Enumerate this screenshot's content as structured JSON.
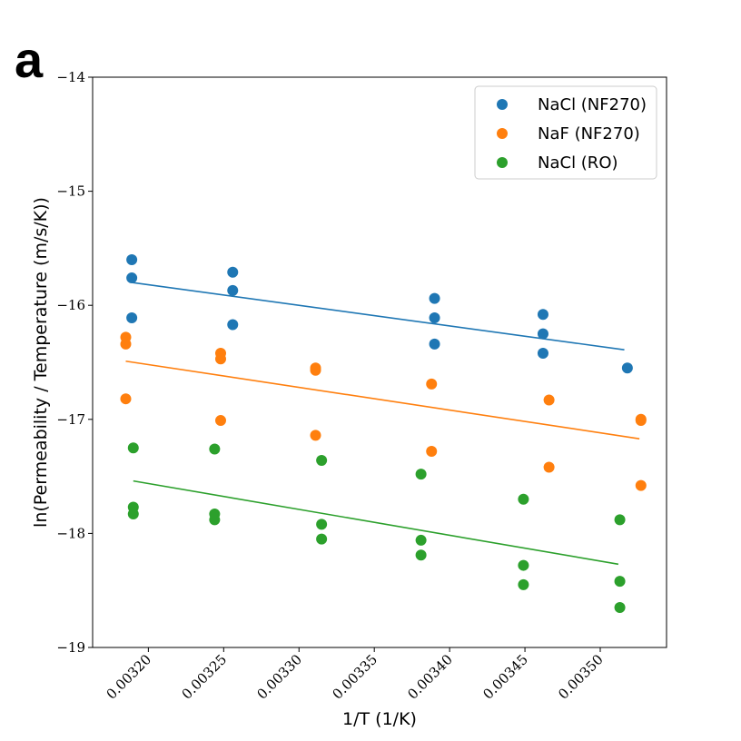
{
  "panel_label": "a",
  "chart_data": {
    "type": "scatter",
    "xlabel": "1/T (1/K)",
    "ylabel": "ln(Permeability / Temperature (m/s/K))",
    "xlim": [
      0.003163,
      0.003544
    ],
    "ylim": [
      -19,
      -14
    ],
    "x_ticks": [
      0.0032,
      0.00325,
      0.0033,
      0.00335,
      0.0034,
      0.00345,
      0.0035
    ],
    "x_tick_labels": [
      "0.00320",
      "0.00325",
      "0.00330",
      "0.00335",
      "0.00340",
      "0.00345",
      "0.00350"
    ],
    "y_ticks": [
      -19,
      -18,
      -17,
      -16,
      -15,
      -14
    ],
    "y_tick_labels": [
      "−19",
      "−18",
      "−17",
      "−16",
      "−15",
      "−14"
    ],
    "legend_position": "top-right",
    "grid": false,
    "series": [
      {
        "name": "NaCl (NF270)",
        "color": "#1f77b4",
        "points": [
          [
            0.003189,
            -15.6
          ],
          [
            0.003189,
            -15.76
          ],
          [
            0.003189,
            -16.11
          ],
          [
            0.003256,
            -15.71
          ],
          [
            0.003256,
            -15.87
          ],
          [
            0.003256,
            -16.17
          ],
          [
            0.00339,
            -15.94
          ],
          [
            0.00339,
            -16.11
          ],
          [
            0.00339,
            -16.34
          ],
          [
            0.003462,
            -16.08
          ],
          [
            0.003462,
            -16.25
          ],
          [
            0.003462,
            -16.42
          ],
          [
            0.003518,
            -16.55
          ]
        ],
        "fit": [
          [
            0.003189,
            -15.8
          ],
          [
            0.003516,
            -16.39
          ]
        ]
      },
      {
        "name": "NaF (NF270)",
        "color": "#ff7f0e",
        "points": [
          [
            0.003185,
            -16.28
          ],
          [
            0.003185,
            -16.34
          ],
          [
            0.003185,
            -16.82
          ],
          [
            0.003248,
            -16.42
          ],
          [
            0.003248,
            -16.47
          ],
          [
            0.003248,
            -17.01
          ],
          [
            0.003311,
            -16.55
          ],
          [
            0.003311,
            -16.57
          ],
          [
            0.003311,
            -17.14
          ],
          [
            0.003388,
            -16.69
          ],
          [
            0.003388,
            -17.28
          ],
          [
            0.003466,
            -16.83
          ],
          [
            0.003466,
            -17.42
          ],
          [
            0.003527,
            -17.0
          ],
          [
            0.003527,
            -17.01
          ],
          [
            0.003527,
            -17.58
          ]
        ],
        "fit": [
          [
            0.003185,
            -16.49
          ],
          [
            0.003526,
            -17.17
          ]
        ]
      },
      {
        "name": "NaCl (RO)",
        "color": "#2ca02c",
        "points": [
          [
            0.00319,
            -17.25
          ],
          [
            0.00319,
            -17.77
          ],
          [
            0.00319,
            -17.83
          ],
          [
            0.003244,
            -17.26
          ],
          [
            0.003244,
            -17.83
          ],
          [
            0.003244,
            -17.88
          ],
          [
            0.003315,
            -17.36
          ],
          [
            0.003315,
            -17.92
          ],
          [
            0.003315,
            -18.05
          ],
          [
            0.003381,
            -17.48
          ],
          [
            0.003381,
            -18.06
          ],
          [
            0.003381,
            -18.19
          ],
          [
            0.003449,
            -17.7
          ],
          [
            0.003449,
            -18.28
          ],
          [
            0.003449,
            -18.45
          ],
          [
            0.003513,
            -17.88
          ],
          [
            0.003513,
            -18.42
          ],
          [
            0.003513,
            -18.65
          ]
        ],
        "fit": [
          [
            0.00319,
            -17.54
          ],
          [
            0.003512,
            -18.27
          ]
        ]
      }
    ]
  }
}
